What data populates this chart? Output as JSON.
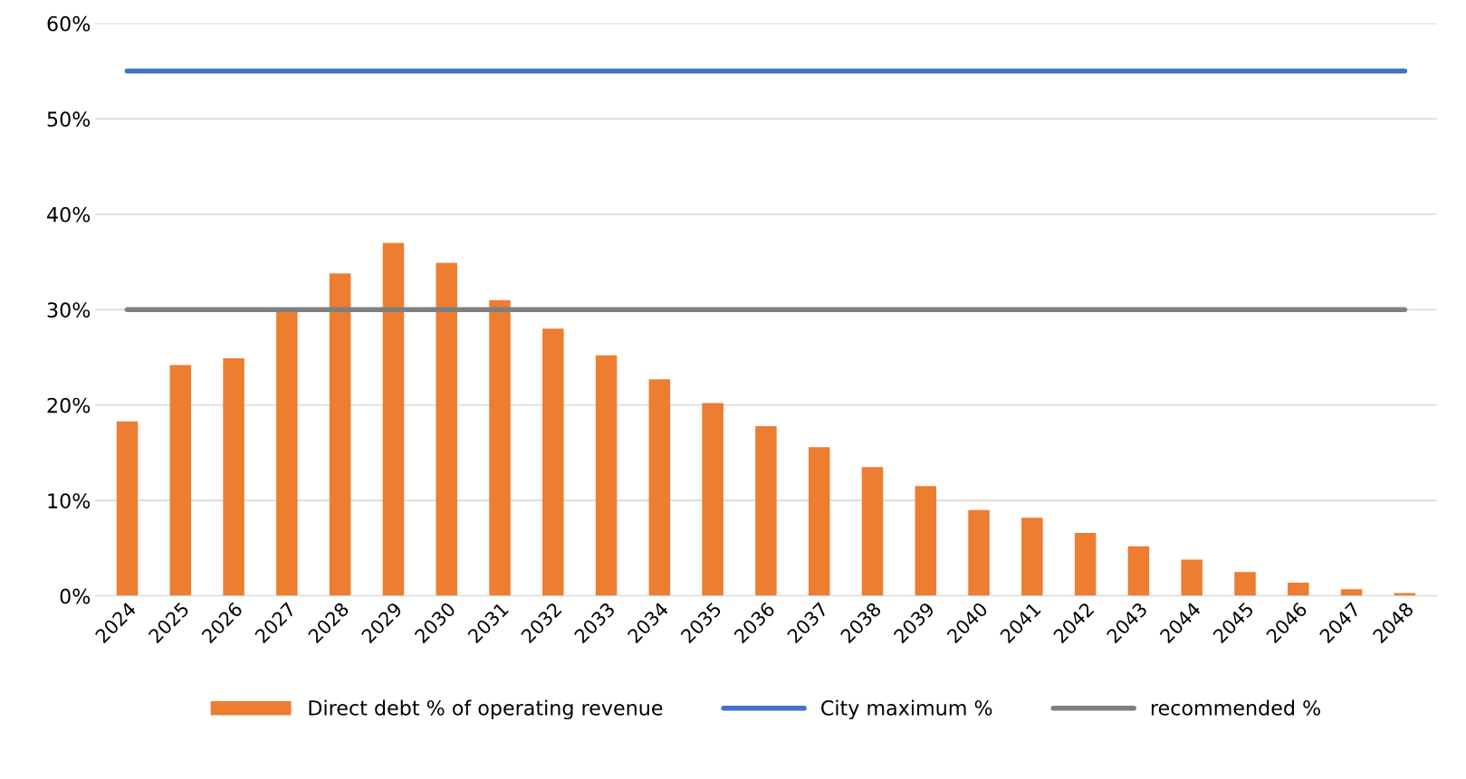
{
  "chart_data": {
    "type": "bar",
    "categories": [
      "2024",
      "2025",
      "2026",
      "2027",
      "2028",
      "2029",
      "2030",
      "2031",
      "2032",
      "2033",
      "2034",
      "2035",
      "2036",
      "2037",
      "2038",
      "2039",
      "2040",
      "2041",
      "2042",
      "2043",
      "2044",
      "2045",
      "2046",
      "2047",
      "2048"
    ],
    "series": [
      {
        "name": "Direct debt % of operating revenue",
        "color": "#ed7d31",
        "values": [
          18.3,
          24.2,
          24.9,
          29.9,
          33.8,
          37.0,
          34.9,
          31.0,
          28.0,
          25.2,
          22.7,
          20.2,
          17.8,
          15.6,
          13.5,
          11.5,
          9.0,
          8.2,
          6.6,
          5.2,
          3.8,
          2.5,
          1.4,
          0.7,
          0.3
        ]
      },
      {
        "name": "City maximum %",
        "color": "#4472c4",
        "type": "line",
        "values": [
          55,
          55,
          55,
          55,
          55,
          55,
          55,
          55,
          55,
          55,
          55,
          55,
          55,
          55,
          55,
          55,
          55,
          55,
          55,
          55,
          55,
          55,
          55,
          55,
          55
        ]
      },
      {
        "name": "recommended %",
        "color": "#7f7f7f",
        "type": "line",
        "values": [
          30,
          30,
          30,
          30,
          30,
          30,
          30,
          30,
          30,
          30,
          30,
          30,
          30,
          30,
          30,
          30,
          30,
          30,
          30,
          30,
          30,
          30,
          30,
          30,
          30
        ]
      }
    ],
    "ylim": [
      0,
      60
    ],
    "yticks": [
      {
        "value": 0,
        "label": "0%"
      },
      {
        "value": 10,
        "label": "10%"
      },
      {
        "value": 20,
        "label": "20%"
      },
      {
        "value": 30,
        "label": "30%"
      },
      {
        "value": 40,
        "label": "40%"
      },
      {
        "value": 50,
        "label": "50%"
      },
      {
        "value": 60,
        "label": "60%"
      }
    ],
    "grid": "y",
    "legend": "bottom",
    "marker": "none",
    "line_style": "solid"
  }
}
